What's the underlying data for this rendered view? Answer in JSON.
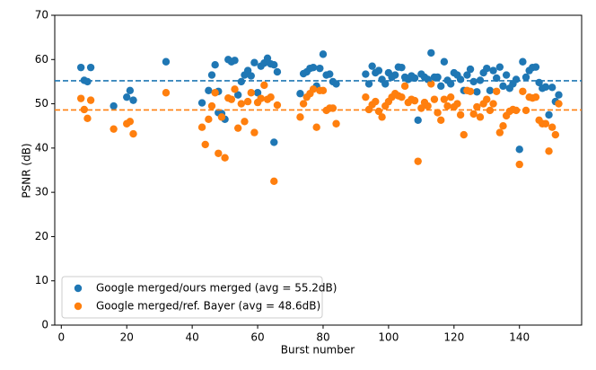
{
  "chart_data": {
    "type": "scatter",
    "xlabel": "Burst number",
    "ylabel": "PSNR (dB)",
    "xlim": [
      -2,
      159
    ],
    "ylim": [
      0,
      70
    ],
    "xticks": [
      0,
      20,
      40,
      60,
      80,
      100,
      120,
      140
    ],
    "yticks": [
      0,
      10,
      20,
      30,
      40,
      50,
      60,
      70
    ],
    "legend": "lower left",
    "grid": false,
    "hlines": [
      {
        "value": 55.2,
        "color": "#1f77b4"
      },
      {
        "value": 48.6,
        "color": "#ff7f0e"
      }
    ],
    "series": [
      {
        "name": "Google merged/ours merged (avg = 55.2dB)",
        "color": "#1f77b4",
        "x": [
          6,
          7,
          8,
          9,
          16,
          20,
          21,
          22,
          32,
          43,
          45,
          46,
          47,
          48,
          48,
          49,
          50,
          51,
          52,
          53,
          54,
          55,
          56,
          57,
          58,
          59,
          60,
          61,
          62,
          63,
          64,
          65,
          66,
          65,
          73,
          74,
          75,
          76,
          77,
          78,
          79,
          80,
          81,
          82,
          83,
          84,
          93,
          94,
          95,
          96,
          97,
          98,
          99,
          100,
          101,
          102,
          103,
          104,
          105,
          106,
          107,
          108,
          109,
          110,
          111,
          112,
          113,
          114,
          115,
          116,
          117,
          118,
          119,
          120,
          121,
          122,
          123,
          124,
          125,
          126,
          127,
          128,
          129,
          130,
          131,
          132,
          133,
          134,
          135,
          136,
          137,
          138,
          139,
          140,
          141,
          142,
          143,
          144,
          145,
          146,
          147,
          148,
          149,
          150,
          151,
          152
        ],
        "values": [
          58.2,
          55.3,
          55,
          58.2,
          49.5,
          51.5,
          53,
          50.8,
          59.5,
          50.2,
          53,
          56.5,
          58.8,
          52.8,
          48,
          47.8,
          46.5,
          60,
          59.5,
          59.8,
          52,
          55,
          56.5,
          57.5,
          56.3,
          59.3,
          52.5,
          58.5,
          59.2,
          60.3,
          59,
          58.8,
          57.2,
          41.3,
          52.3,
          56.8,
          57.2,
          58,
          58.2,
          54,
          58,
          61.2,
          56.5,
          56.7,
          55,
          54.5,
          56.7,
          54.5,
          58.5,
          57,
          57.5,
          55.5,
          54.5,
          57,
          56,
          56.5,
          58.3,
          58.2,
          56,
          55.5,
          56.3,
          55.8,
          46.3,
          56.7,
          56,
          55.5,
          61.5,
          56,
          56,
          54,
          59.5,
          55.3,
          54.5,
          57,
          56.5,
          55.5,
          53,
          56.5,
          57.8,
          55,
          52.7,
          55.3,
          57,
          58,
          53,
          57.5,
          55.8,
          58.3,
          54,
          56.5,
          53.5,
          54.5,
          55.5,
          39.7,
          59.5,
          56,
          57.5,
          58.2,
          58.3,
          54.8,
          53.5,
          53.8,
          47.5,
          53.7,
          50.5,
          52
        ]
      },
      {
        "name": "Google merged/ref. Bayer (avg = 48.6dB)",
        "color": "#ff7f0e",
        "x": [
          6,
          7,
          8,
          9,
          16,
          20,
          21,
          22,
          32,
          43,
          44,
          45,
          46,
          47,
          48,
          49,
          50,
          51,
          52,
          53,
          54,
          55,
          56,
          57,
          58,
          59,
          60,
          61,
          62,
          63,
          64,
          65,
          66,
          73,
          74,
          75,
          76,
          77,
          78,
          79,
          80,
          81,
          82,
          83,
          84,
          93,
          94,
          95,
          96,
          97,
          98,
          99,
          100,
          101,
          102,
          103,
          104,
          105,
          106,
          107,
          108,
          109,
          110,
          111,
          112,
          113,
          114,
          115,
          116,
          117,
          118,
          119,
          120,
          121,
          122,
          123,
          124,
          125,
          126,
          127,
          128,
          129,
          130,
          131,
          132,
          133,
          134,
          135,
          136,
          137,
          138,
          139,
          140,
          141,
          142,
          143,
          144,
          145,
          146,
          147,
          148,
          149,
          150,
          151,
          152
        ],
        "values": [
          51.2,
          48.7,
          46.7,
          50.8,
          44.3,
          45.5,
          46,
          43.2,
          52.5,
          44.7,
          40.8,
          46.5,
          49.5,
          52.5,
          38.8,
          47,
          37.8,
          51.3,
          51,
          53.3,
          44.5,
          50,
          46,
          50.5,
          52.5,
          43.5,
          50.3,
          51.2,
          54.2,
          51,
          51.5,
          32.5,
          49.7,
          47,
          50,
          51.5,
          52.3,
          53.3,
          44.7,
          53,
          53,
          48.5,
          49,
          49,
          45.5,
          51.5,
          48.7,
          49.8,
          50.5,
          48.3,
          47,
          49.5,
          50.5,
          51.5,
          52.3,
          51.8,
          51.5,
          54,
          50.3,
          51,
          50.7,
          37,
          49,
          50.3,
          49.5,
          54.5,
          51,
          48,
          46.3,
          51,
          49.5,
          51.5,
          49.3,
          50,
          47.5,
          43,
          53,
          52.8,
          47.7,
          49.3,
          47,
          50,
          51,
          48.5,
          50,
          52.8,
          43.5,
          45,
          47.3,
          48.3,
          48.7,
          48.5,
          36.3,
          52.8,
          48.5,
          51.5,
          51.3,
          51.5,
          46.3,
          45.5,
          45.5,
          39.3,
          44.7,
          43,
          50
        ]
      }
    ]
  }
}
